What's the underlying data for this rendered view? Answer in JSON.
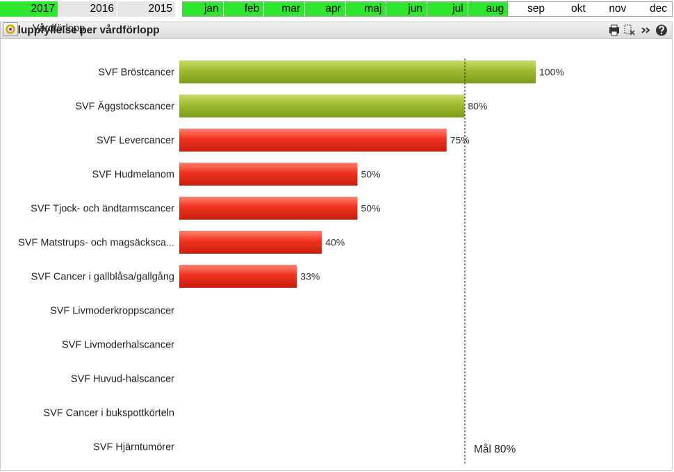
{
  "years": [
    {
      "label": "2017",
      "active": true
    },
    {
      "label": "2016",
      "active": false
    },
    {
      "label": "2015",
      "active": false
    }
  ],
  "months": [
    {
      "label": "jan",
      "active": true
    },
    {
      "label": "feb",
      "active": true
    },
    {
      "label": "mar",
      "active": true
    },
    {
      "label": "apr",
      "active": true
    },
    {
      "label": "maj",
      "active": true
    },
    {
      "label": "jun",
      "active": true
    },
    {
      "label": "jul",
      "active": true
    },
    {
      "label": "aug",
      "active": true
    },
    {
      "label": "sep",
      "active": false
    },
    {
      "label": "okt",
      "active": false
    },
    {
      "label": "nov",
      "active": false
    },
    {
      "label": "dec",
      "active": false
    }
  ],
  "panel": {
    "title": "Måluppfyllelse per vårdförlopp",
    "icons": [
      "print-icon",
      "clear-selection-icon",
      "more-icon",
      "help-icon"
    ],
    "dimension_label": "Vårdförlopp",
    "dimension_icon": "cycle-dimension-icon"
  },
  "colors": {
    "above_target": "#9dbb2e",
    "below_target": "#f0321f",
    "selected": "#2ee62e"
  },
  "chart_data": {
    "type": "bar",
    "orientation": "horizontal",
    "categories": [
      "SVF Bröstcancer",
      "SVF Äggstockscancer",
      "SVF Levercancer",
      "SVF Hudmelanom",
      "SVF Tjock- och ändtarmscancer",
      "SVF Matstrups- och magsäcksca...",
      "SVF Cancer i gallblåsa/gallgång",
      "SVF Livmoderkroppscancer",
      "SVF Livmoderhalscancer",
      "SVF Huvud-halscancer",
      "SVF Cancer i bukspottkörteln",
      "SVF Hjärntumörer"
    ],
    "values": [
      100,
      80,
      75,
      50,
      50,
      40,
      33,
      null,
      null,
      null,
      null,
      null
    ],
    "value_labels": [
      "100%",
      "80%",
      "75%",
      "50%",
      "50%",
      "40%",
      "33%",
      "",
      "",
      "",
      "",
      ""
    ],
    "target": 80,
    "target_label": "Mål 80%",
    "xlim": [
      0,
      100
    ]
  }
}
